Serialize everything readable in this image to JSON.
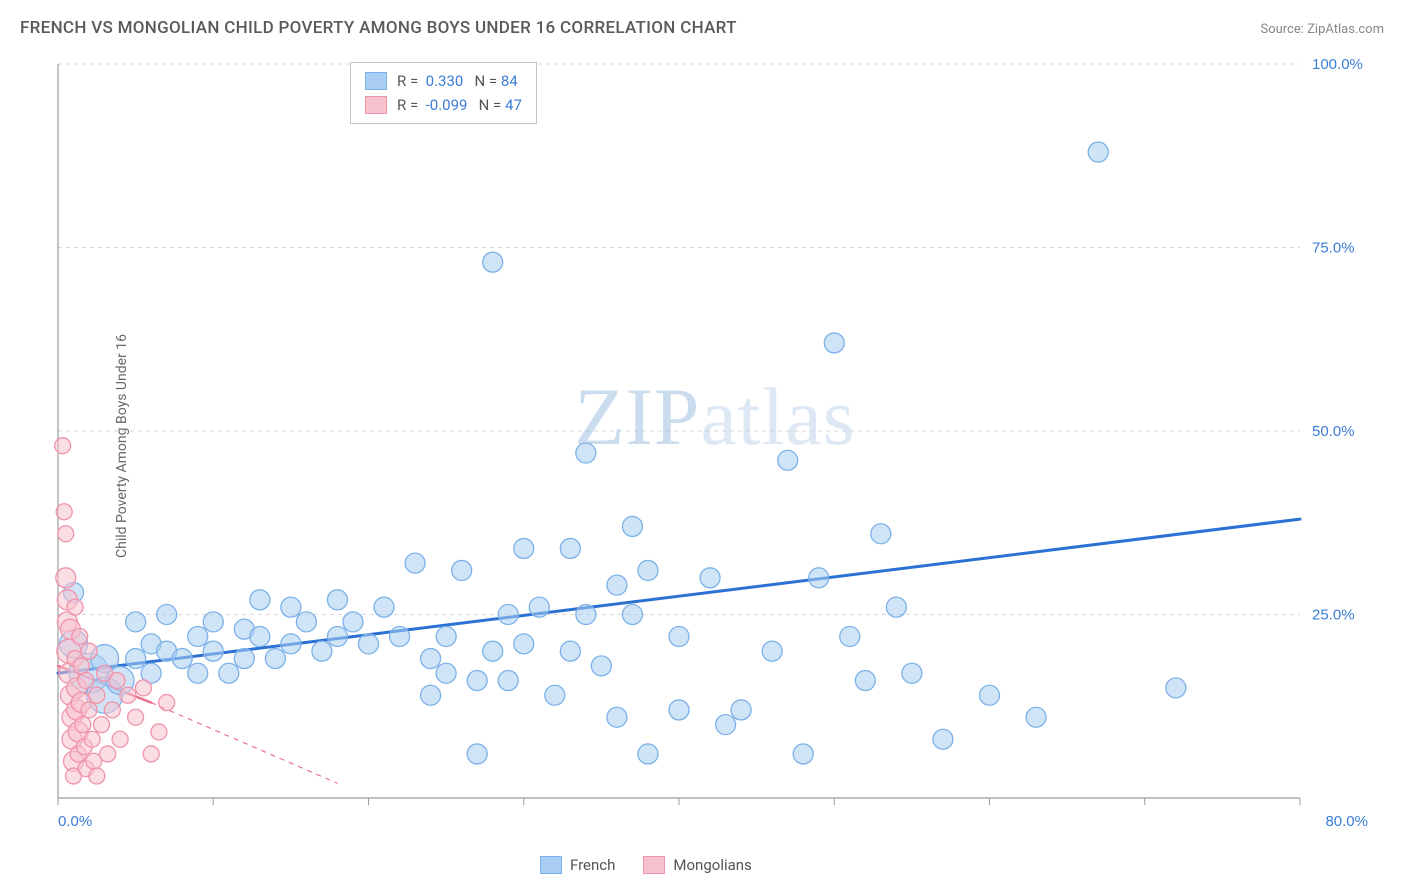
{
  "title": "FRENCH VS MONGOLIAN CHILD POVERTY AMONG BOYS UNDER 16 CORRELATION CHART",
  "source": "Source: ZipAtlas.com",
  "ylabel": "Child Poverty Among Boys Under 16",
  "watermark_zip": "ZIP",
  "watermark_atlas": "atlas",
  "chart": {
    "type": "scatter",
    "background_color": "#ffffff",
    "grid_color": "#d7d7d7",
    "axis_color": "#9c9c9c",
    "xlim": [
      0,
      80
    ],
    "ylim": [
      0,
      100
    ],
    "x_ticks": [
      0,
      10,
      20,
      30,
      40,
      50,
      60,
      70,
      80
    ],
    "y_ticks": [
      25,
      50,
      75,
      100
    ],
    "x_tick_labels": {
      "0": "0.0%",
      "80": "80.0%"
    },
    "y_tick_labels": {
      "25": "25.0%",
      "50": "50.0%",
      "75": "75.0%",
      "100": "100.0%"
    },
    "x_label_color": "#3b7dd8",
    "y_label_color": "#3b7dd8",
    "series": [
      {
        "name": "French",
        "color_fill": "#a9cdf3",
        "color_stroke": "#7cb1e8",
        "trend_color": "#2b71d4",
        "trend_width": 3,
        "trend": {
          "x1": 0,
          "y1": 17,
          "x2": 80,
          "y2": 38
        },
        "R": "0.330",
        "N": "84",
        "points": [
          {
            "x": 1,
            "y": 28,
            "r": 10
          },
          {
            "x": 1,
            "y": 21,
            "r": 14
          },
          {
            "x": 2,
            "y": 17,
            "r": 20
          },
          {
            "x": 3,
            "y": 19,
            "r": 14
          },
          {
            "x": 3,
            "y": 14,
            "r": 18
          },
          {
            "x": 4,
            "y": 16,
            "r": 14
          },
          {
            "x": 5,
            "y": 24,
            "r": 10
          },
          {
            "x": 5,
            "y": 19,
            "r": 10
          },
          {
            "x": 6,
            "y": 21,
            "r": 10
          },
          {
            "x": 6,
            "y": 17,
            "r": 10
          },
          {
            "x": 7,
            "y": 25,
            "r": 10
          },
          {
            "x": 7,
            "y": 20,
            "r": 10
          },
          {
            "x": 8,
            "y": 19,
            "r": 10
          },
          {
            "x": 9,
            "y": 22,
            "r": 10
          },
          {
            "x": 9,
            "y": 17,
            "r": 10
          },
          {
            "x": 10,
            "y": 24,
            "r": 10
          },
          {
            "x": 10,
            "y": 20,
            "r": 10
          },
          {
            "x": 11,
            "y": 17,
            "r": 10
          },
          {
            "x": 12,
            "y": 23,
            "r": 10
          },
          {
            "x": 12,
            "y": 19,
            "r": 10
          },
          {
            "x": 13,
            "y": 27,
            "r": 10
          },
          {
            "x": 13,
            "y": 22,
            "r": 10
          },
          {
            "x": 14,
            "y": 19,
            "r": 10
          },
          {
            "x": 15,
            "y": 26,
            "r": 10
          },
          {
            "x": 15,
            "y": 21,
            "r": 10
          },
          {
            "x": 16,
            "y": 24,
            "r": 10
          },
          {
            "x": 17,
            "y": 20,
            "r": 10
          },
          {
            "x": 18,
            "y": 27,
            "r": 10
          },
          {
            "x": 18,
            "y": 22,
            "r": 10
          },
          {
            "x": 19,
            "y": 24,
            "r": 10
          },
          {
            "x": 20,
            "y": 21,
            "r": 10
          },
          {
            "x": 21,
            "y": 26,
            "r": 10
          },
          {
            "x": 22,
            "y": 22,
            "r": 10
          },
          {
            "x": 23,
            "y": 32,
            "r": 10
          },
          {
            "x": 24,
            "y": 19,
            "r": 10
          },
          {
            "x": 24,
            "y": 14,
            "r": 10
          },
          {
            "x": 25,
            "y": 17,
            "r": 10
          },
          {
            "x": 25,
            "y": 22,
            "r": 10
          },
          {
            "x": 26,
            "y": 31,
            "r": 10
          },
          {
            "x": 27,
            "y": 16,
            "r": 10
          },
          {
            "x": 27,
            "y": 6,
            "r": 10
          },
          {
            "x": 28,
            "y": 73,
            "r": 10
          },
          {
            "x": 28,
            "y": 20,
            "r": 10
          },
          {
            "x": 29,
            "y": 25,
            "r": 10
          },
          {
            "x": 29,
            "y": 16,
            "r": 10
          },
          {
            "x": 30,
            "y": 34,
            "r": 10
          },
          {
            "x": 30,
            "y": 21,
            "r": 10
          },
          {
            "x": 31,
            "y": 26,
            "r": 10
          },
          {
            "x": 32,
            "y": 14,
            "r": 10
          },
          {
            "x": 33,
            "y": 20,
            "r": 10
          },
          {
            "x": 33,
            "y": 34,
            "r": 10
          },
          {
            "x": 34,
            "y": 25,
            "r": 10
          },
          {
            "x": 34,
            "y": 47,
            "r": 10
          },
          {
            "x": 35,
            "y": 18,
            "r": 10
          },
          {
            "x": 36,
            "y": 29,
            "r": 10
          },
          {
            "x": 36,
            "y": 11,
            "r": 10
          },
          {
            "x": 37,
            "y": 37,
            "r": 10
          },
          {
            "x": 37,
            "y": 25,
            "r": 10
          },
          {
            "x": 38,
            "y": 31,
            "r": 10
          },
          {
            "x": 38,
            "y": 6,
            "r": 10
          },
          {
            "x": 40,
            "y": 22,
            "r": 10
          },
          {
            "x": 40,
            "y": 12,
            "r": 10
          },
          {
            "x": 42,
            "y": 30,
            "r": 10
          },
          {
            "x": 43,
            "y": 10,
            "r": 10
          },
          {
            "x": 44,
            "y": 12,
            "r": 10
          },
          {
            "x": 46,
            "y": 20,
            "r": 10
          },
          {
            "x": 47,
            "y": 46,
            "r": 10
          },
          {
            "x": 48,
            "y": 6,
            "r": 10
          },
          {
            "x": 49,
            "y": 30,
            "r": 10
          },
          {
            "x": 50,
            "y": 62,
            "r": 10
          },
          {
            "x": 51,
            "y": 22,
            "r": 10
          },
          {
            "x": 52,
            "y": 16,
            "r": 10
          },
          {
            "x": 53,
            "y": 36,
            "r": 10
          },
          {
            "x": 54,
            "y": 26,
            "r": 10
          },
          {
            "x": 55,
            "y": 17,
            "r": 10
          },
          {
            "x": 57,
            "y": 8,
            "r": 10
          },
          {
            "x": 60,
            "y": 14,
            "r": 10
          },
          {
            "x": 63,
            "y": 11,
            "r": 10
          },
          {
            "x": 67,
            "y": 88,
            "r": 10
          },
          {
            "x": 72,
            "y": 15,
            "r": 10
          }
        ]
      },
      {
        "name": "Mongolians",
        "color_fill": "#f7c1cd",
        "color_stroke": "#ef94aa",
        "trend_color": "#e77290",
        "trend_width": 2.5,
        "trend_dash_ext": true,
        "trend": {
          "x1": 0,
          "y1": 18,
          "x2": 6,
          "y2": 13
        },
        "trend_ext": {
          "x1": 6,
          "y1": 13,
          "x2": 18,
          "y2": 2
        },
        "R": "-0.099",
        "N": "47",
        "points": [
          {
            "x": 0.3,
            "y": 48,
            "r": 8
          },
          {
            "x": 0.4,
            "y": 39,
            "r": 8
          },
          {
            "x": 0.5,
            "y": 36,
            "r": 8
          },
          {
            "x": 0.5,
            "y": 30,
            "r": 10
          },
          {
            "x": 0.6,
            "y": 27,
            "r": 10
          },
          {
            "x": 0.6,
            "y": 24,
            "r": 10
          },
          {
            "x": 0.7,
            "y": 20,
            "r": 12
          },
          {
            "x": 0.7,
            "y": 17,
            "r": 10
          },
          {
            "x": 0.8,
            "y": 23,
            "r": 10
          },
          {
            "x": 0.8,
            "y": 14,
            "r": 10
          },
          {
            "x": 0.9,
            "y": 11,
            "r": 10
          },
          {
            "x": 0.9,
            "y": 8,
            "r": 10
          },
          {
            "x": 1.0,
            "y": 5,
            "r": 10
          },
          {
            "x": 1.0,
            "y": 3,
            "r": 8
          },
          {
            "x": 1.1,
            "y": 26,
            "r": 8
          },
          {
            "x": 1.1,
            "y": 19,
            "r": 8
          },
          {
            "x": 1.2,
            "y": 15,
            "r": 10
          },
          {
            "x": 1.2,
            "y": 12,
            "r": 10
          },
          {
            "x": 1.3,
            "y": 9,
            "r": 10
          },
          {
            "x": 1.3,
            "y": 6,
            "r": 8
          },
          {
            "x": 1.4,
            "y": 22,
            "r": 8
          },
          {
            "x": 1.5,
            "y": 18,
            "r": 8
          },
          {
            "x": 1.5,
            "y": 13,
            "r": 10
          },
          {
            "x": 1.6,
            "y": 10,
            "r": 8
          },
          {
            "x": 1.7,
            "y": 7,
            "r": 8
          },
          {
            "x": 1.8,
            "y": 4,
            "r": 8
          },
          {
            "x": 1.8,
            "y": 16,
            "r": 8
          },
          {
            "x": 2.0,
            "y": 20,
            "r": 8
          },
          {
            "x": 2.0,
            "y": 12,
            "r": 8
          },
          {
            "x": 2.2,
            "y": 8,
            "r": 8
          },
          {
            "x": 2.3,
            "y": 5,
            "r": 8
          },
          {
            "x": 2.5,
            "y": 14,
            "r": 8
          },
          {
            "x": 2.5,
            "y": 3,
            "r": 8
          },
          {
            "x": 2.8,
            "y": 10,
            "r": 8
          },
          {
            "x": 3.0,
            "y": 17,
            "r": 8
          },
          {
            "x": 3.2,
            "y": 6,
            "r": 8
          },
          {
            "x": 3.5,
            "y": 12,
            "r": 8
          },
          {
            "x": 3.8,
            "y": 16,
            "r": 8
          },
          {
            "x": 4.0,
            "y": 8,
            "r": 8
          },
          {
            "x": 4.5,
            "y": 14,
            "r": 8
          },
          {
            "x": 5.0,
            "y": 11,
            "r": 8
          },
          {
            "x": 5.5,
            "y": 15,
            "r": 8
          },
          {
            "x": 6.0,
            "y": 6,
            "r": 8
          },
          {
            "x": 6.5,
            "y": 9,
            "r": 8
          },
          {
            "x": 7.0,
            "y": 13,
            "r": 8
          }
        ]
      }
    ]
  },
  "stats_box": {
    "rows": [
      {
        "swatch_fill": "#a9cdf3",
        "swatch_stroke": "#7cb1e8",
        "R_label": "R =",
        "R": "0.330",
        "N_label": "N =",
        "N": "84",
        "value_color": "#3b7dd8"
      },
      {
        "swatch_fill": "#f7c1cd",
        "swatch_stroke": "#ef94aa",
        "R_label": "R =",
        "R": "-0.099",
        "N_label": "N =",
        "N": "47",
        "value_color": "#3b7dd8"
      }
    ]
  },
  "legend": {
    "items": [
      {
        "label": "French",
        "swatch_fill": "#a9cdf3",
        "swatch_stroke": "#7cb1e8"
      },
      {
        "label": "Mongolians",
        "swatch_fill": "#f7c1cd",
        "swatch_stroke": "#ef94aa"
      }
    ]
  }
}
